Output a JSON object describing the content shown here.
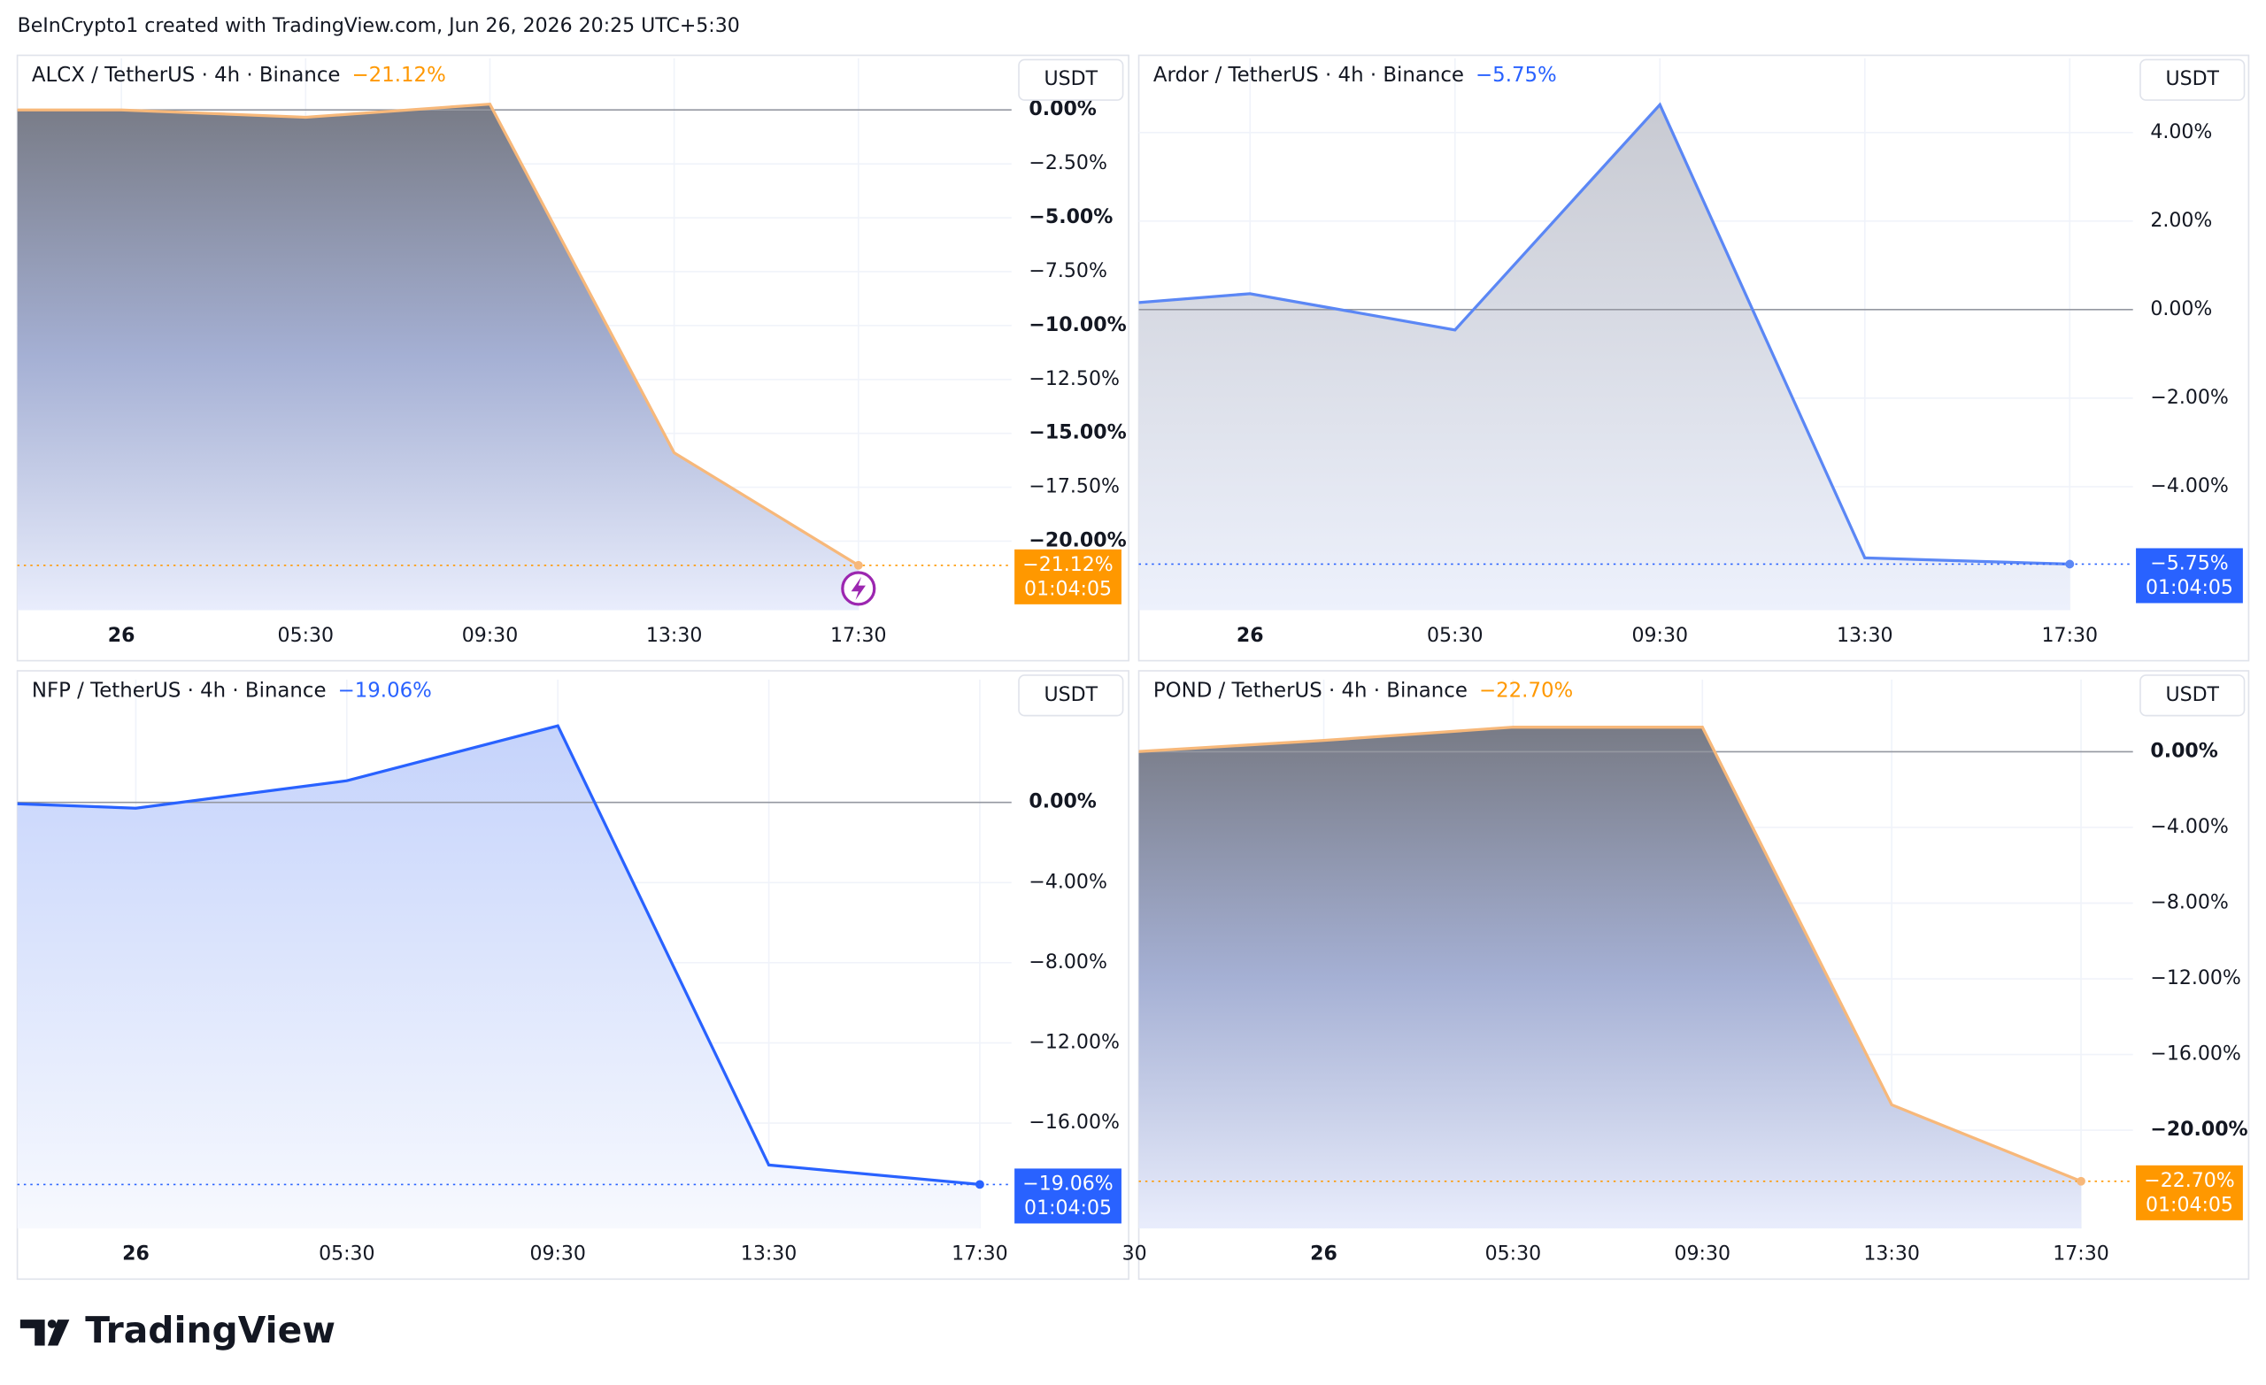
{
  "header": "BeInCrypto1 created with TradingView.com, Jun 26, 2026 20:25 UTC+5:30",
  "brand": "TradingView",
  "chart_data": [
    {
      "type": "area",
      "title": "ALCX / TetherUS · 4h · Binance",
      "change": "−21.12%",
      "change_color": "#ff9800",
      "currency": "USDT",
      "countdown": "01:04:05",
      "color": "#f7b87a",
      "label_color": "#ff9800",
      "categories": [
        null,
        "26",
        "05:30",
        "09:30",
        "13:30",
        "17:30"
      ],
      "values": [
        0,
        0,
        -0.34,
        0.27,
        -15.9,
        -21.12
      ],
      "value_labels": [
        null,
        null,
        null,
        null,
        null,
        "−21.12%"
      ],
      "ylim": [
        -23.2,
        2.4
      ],
      "yticks": [
        {
          "value": 0,
          "label": "0.00%"
        },
        {
          "value": -2.5,
          "label": "−2.50%"
        },
        {
          "value": -5,
          "label": "−5.00%"
        },
        {
          "value": -7.5,
          "label": "−7.50%"
        },
        {
          "value": -10,
          "label": "−10.00%"
        },
        {
          "value": -12.5,
          "label": "−12.50%"
        },
        {
          "value": -15,
          "label": "−15.00%"
        },
        {
          "value": -17.5,
          "label": "−17.50%"
        },
        {
          "value": -20,
          "label": "−20.00%"
        }
      ],
      "grid": true
    },
    {
      "type": "area",
      "title": "Ardor / TetherUS · 4h · Binance",
      "change": "−5.75%",
      "change_color": "#2962ff",
      "currency": "USDT",
      "countdown": "01:04:05",
      "color": "#5b87f5",
      "label_color": "#2962ff",
      "categories": [
        null,
        "26",
        "05:30",
        "09:30",
        "13:30",
        "17:30"
      ],
      "values": [
        0.16,
        0.36,
        -0.46,
        4.63,
        -5.61,
        -5.75
      ],
      "value_labels": [
        null,
        null,
        null,
        null,
        null,
        "−5.75%"
      ],
      "ylim": [
        -6.79,
        5.68
      ],
      "yticks": [
        {
          "value": 4,
          "label": "4.00%"
        },
        {
          "value": 2,
          "label": "2.00%"
        },
        {
          "value": 0,
          "label": "0.00%"
        },
        {
          "value": -2,
          "label": "−2.00%"
        },
        {
          "value": -4,
          "label": "−4.00%"
        }
      ],
      "grid": true
    },
    {
      "type": "area",
      "title": "NFP / TetherUS · 4h · Binance",
      "change": "−19.06%",
      "change_color": "#2962ff",
      "currency": "USDT",
      "countdown": "01:04:05",
      "color": "#2962ff",
      "label_color": "#2962ff",
      "categories": [
        null,
        "26",
        "05:30",
        "09:30",
        "13:30",
        "17:30"
      ],
      "values": [
        -0.07,
        -0.29,
        1.08,
        3.82,
        -18.09,
        -19.06
      ],
      "value_labels": [
        null,
        null,
        null,
        null,
        null,
        "−19.06%"
      ],
      "ylim": [
        -21.26,
        6.13
      ],
      "yticks": [
        {
          "value": 0,
          "label": "0.00%"
        },
        {
          "value": -4,
          "label": "−4.00%"
        },
        {
          "value": -8,
          "label": "−8.00%"
        },
        {
          "value": -12,
          "label": "−12.00%"
        },
        {
          "value": -16,
          "label": "−16.00%"
        }
      ],
      "grid": true
    },
    {
      "type": "area",
      "title": "POND / TetherUS · 4h · Binance",
      "change": "−22.70%",
      "change_color": "#ff9800",
      "currency": "USDT",
      "countdown": "01:04:05",
      "color": "#f7b87a",
      "label_color": "#ff9800",
      "categories": [
        "30",
        "26",
        "05:30",
        "09:30",
        "13:30",
        "17:30"
      ],
      "values": [
        0,
        0.6,
        1.3,
        1.3,
        -18.66,
        -22.7
      ],
      "value_labels": [
        null,
        null,
        null,
        null,
        null,
        "−22.70%"
      ],
      "ylim": [
        -25.2,
        3.82
      ],
      "yticks": [
        {
          "value": 0,
          "label": "0.00%"
        },
        {
          "value": -4,
          "label": "−4.00%"
        },
        {
          "value": -8,
          "label": "−8.00%"
        },
        {
          "value": -12,
          "label": "−12.00%"
        },
        {
          "value": -16,
          "label": "−16.00%"
        },
        {
          "value": -20,
          "label": "−20.00%"
        }
      ],
      "grid": true
    }
  ]
}
